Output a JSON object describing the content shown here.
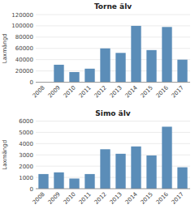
{
  "chart_data": [
    {
      "type": "bar",
      "title": "Torne älv",
      "ylabel": "Laxmängd",
      "categories": [
        "2008",
        "2009",
        "2010",
        "2011",
        "2012",
        "2013",
        "2014",
        "2015",
        "2016",
        "2017"
      ],
      "values": [
        0,
        31000,
        18000,
        24000,
        60000,
        52000,
        100000,
        57000,
        98000,
        40000
      ],
      "color": "#5b8db8",
      "ylim": [
        0,
        120000
      ],
      "yticks": [
        0,
        20000,
        40000,
        60000,
        80000,
        100000,
        120000
      ],
      "grid": true
    },
    {
      "type": "bar",
      "title": "Simo älv",
      "ylabel": "Laxmängd",
      "categories": [
        "2008",
        "2009",
        "2010",
        "2011",
        "2012",
        "2013",
        "2014",
        "2015",
        "2016",
        "2017"
      ],
      "values": [
        1300,
        1450,
        900,
        1300,
        3500,
        3100,
        3750,
        2950,
        5500,
        1900
      ],
      "color": "#5b8db8",
      "ylim": [
        0,
        6000
      ],
      "yticks": [
        0,
        1000,
        2000,
        3000,
        4000,
        5000,
        6000
      ],
      "grid": true
    }
  ]
}
